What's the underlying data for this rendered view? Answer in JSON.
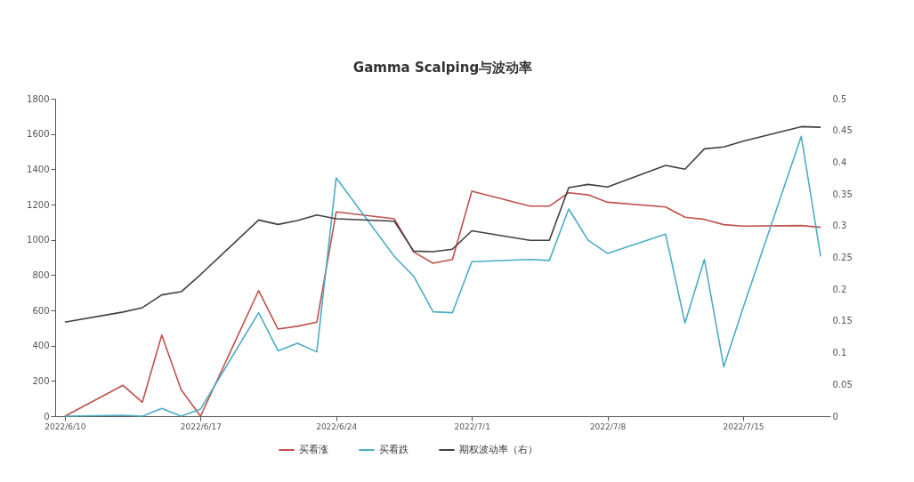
{
  "chart_data": {
    "type": "line",
    "title": "Gamma Scalping与波动率",
    "x": [
      "2022-06-10",
      "2022-06-13",
      "2022-06-14",
      "2022-06-15",
      "2022-06-16",
      "2022-06-17",
      "2022-06-20",
      "2022-06-21",
      "2022-06-22",
      "2022-06-23",
      "2022-06-24",
      "2022-06-27",
      "2022-06-28",
      "2022-06-29",
      "2022-06-30",
      "2022-07-01",
      "2022-07-04",
      "2022-07-05",
      "2022-07-06",
      "2022-07-07",
      "2022-07-08",
      "2022-07-11",
      "2022-07-12",
      "2022-07-13",
      "2022-07-14",
      "2022-07-15",
      "2022-07-18",
      "2022-07-19"
    ],
    "series": [
      {
        "name": "买看涨",
        "color": "#c0504d",
        "values": [
          0,
          175,
          79,
          460,
          150,
          0,
          712,
          494,
          510,
          533,
          1158,
          1119,
          931,
          867,
          889,
          1276,
          1191,
          1191,
          1267,
          1255,
          1213,
          1186,
          1128,
          1116,
          1086,
          1078,
          1081,
          1071
        ]
      },
      {
        "name": "买看跌",
        "color": "#4bacc6",
        "values": [
          0,
          5,
          0,
          44,
          0,
          40,
          587,
          371,
          413,
          365,
          1351,
          906,
          793,
          592,
          587,
          876,
          889,
          883,
          1175,
          998,
          923,
          1032,
          528,
          889,
          280,
          615,
          1587,
          906
        ]
      },
      {
        "name": "期权波动率（右）",
        "color": "#404040",
        "axis": "y2",
        "values": [
          0.148,
          0.164,
          0.171,
          0.191,
          0.196,
          0.223,
          0.309,
          0.302,
          0.308,
          0.317,
          0.311,
          0.307,
          0.26,
          0.259,
          0.263,
          0.292,
          0.277,
          0.277,
          0.36,
          0.365,
          0.361,
          0.395,
          0.389,
          0.421,
          0.424,
          0.433,
          0.456,
          0.455
        ]
      }
    ],
    "xlim": [
      "2022-06-09T12:00",
      "2022-07-19T12:00"
    ],
    "xticks": [
      {
        "value": "2022-06-10",
        "label": "2022/6/10"
      },
      {
        "value": "2022-06-17",
        "label": "2022/6/17"
      },
      {
        "value": "2022-06-24",
        "label": "2022/6/24"
      },
      {
        "value": "2022-07-01",
        "label": "2022/7/1"
      },
      {
        "value": "2022-07-08",
        "label": "2022/7/8"
      },
      {
        "value": "2022-07-15",
        "label": "2022/7/15"
      }
    ],
    "ylim": [
      0,
      1800
    ],
    "yticks": [
      0,
      200,
      400,
      600,
      800,
      1000,
      1200,
      1400,
      1600,
      1800
    ],
    "y2lim": [
      0,
      0.5
    ],
    "y2ticks": [
      0,
      0.05,
      0.1,
      0.15,
      0.2,
      0.25,
      0.3,
      0.35,
      0.4,
      0.45,
      0.5
    ],
    "grid": false,
    "legend": "bottom",
    "marker": "none",
    "line_style": "solid"
  }
}
